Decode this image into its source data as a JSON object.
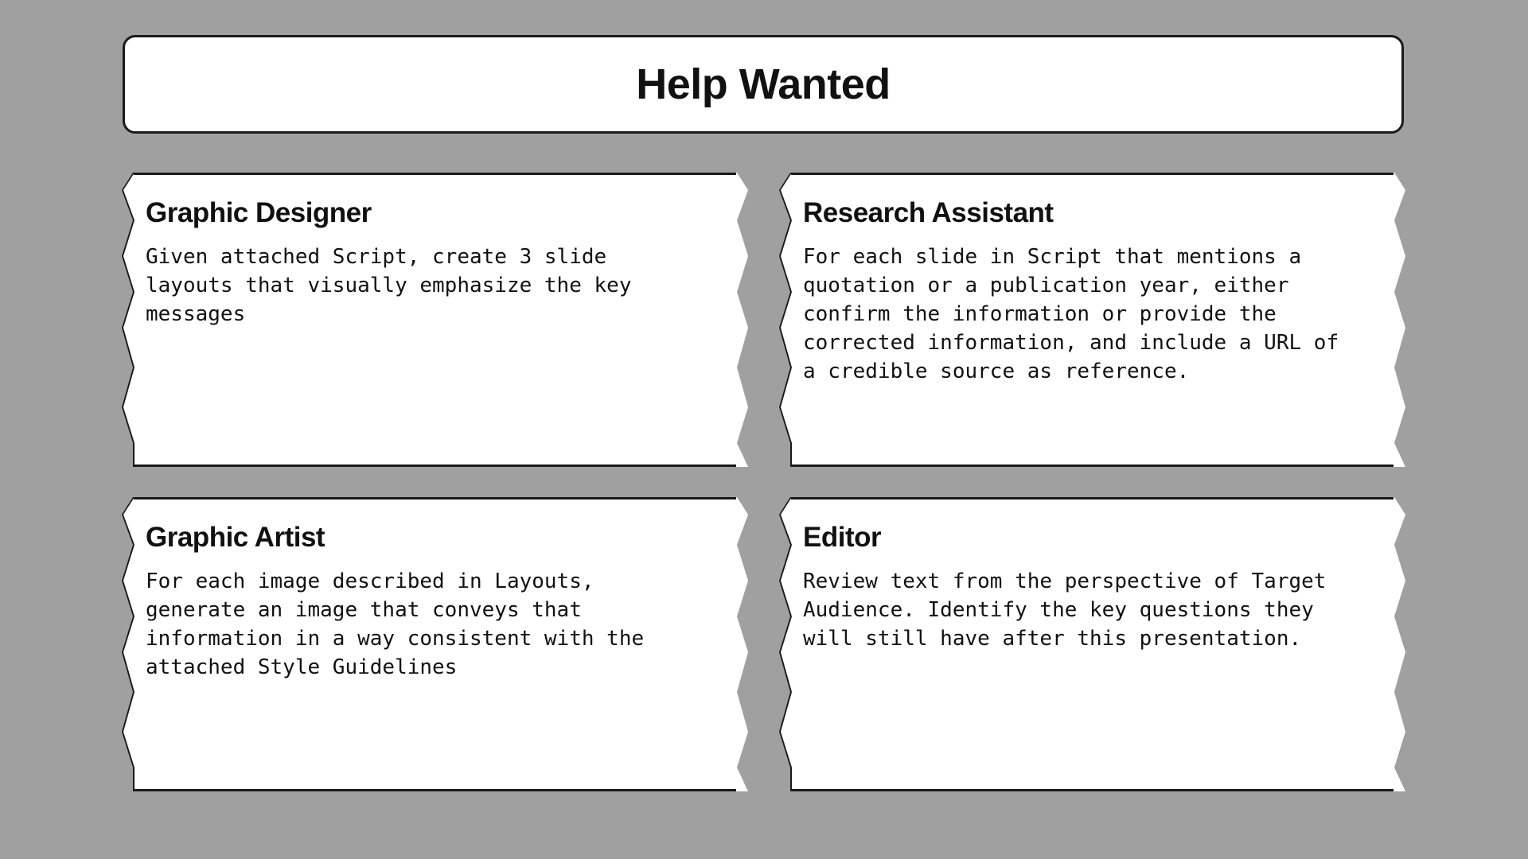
{
  "header": {
    "title": "Help Wanted"
  },
  "jobs": [
    {
      "title": "Graphic Designer",
      "description": "Given attached Script, create 3 slide layouts that visually emphasize the key messages"
    },
    {
      "title": "Research Assistant",
      "description": "For each slide in Script that mentions a quotation or a publication year, either confirm the information or provide the corrected information, and include a URL of a credible source as reference."
    },
    {
      "title": "Graphic Artist",
      "description": "For each image described in Layouts, generate an image that conveys that information in a way consistent with the attached Style Guidelines"
    },
    {
      "title": "Editor",
      "description": "Review text from the perspective of Target Audience. Identify the key questions they will still have after this presentation."
    }
  ]
}
